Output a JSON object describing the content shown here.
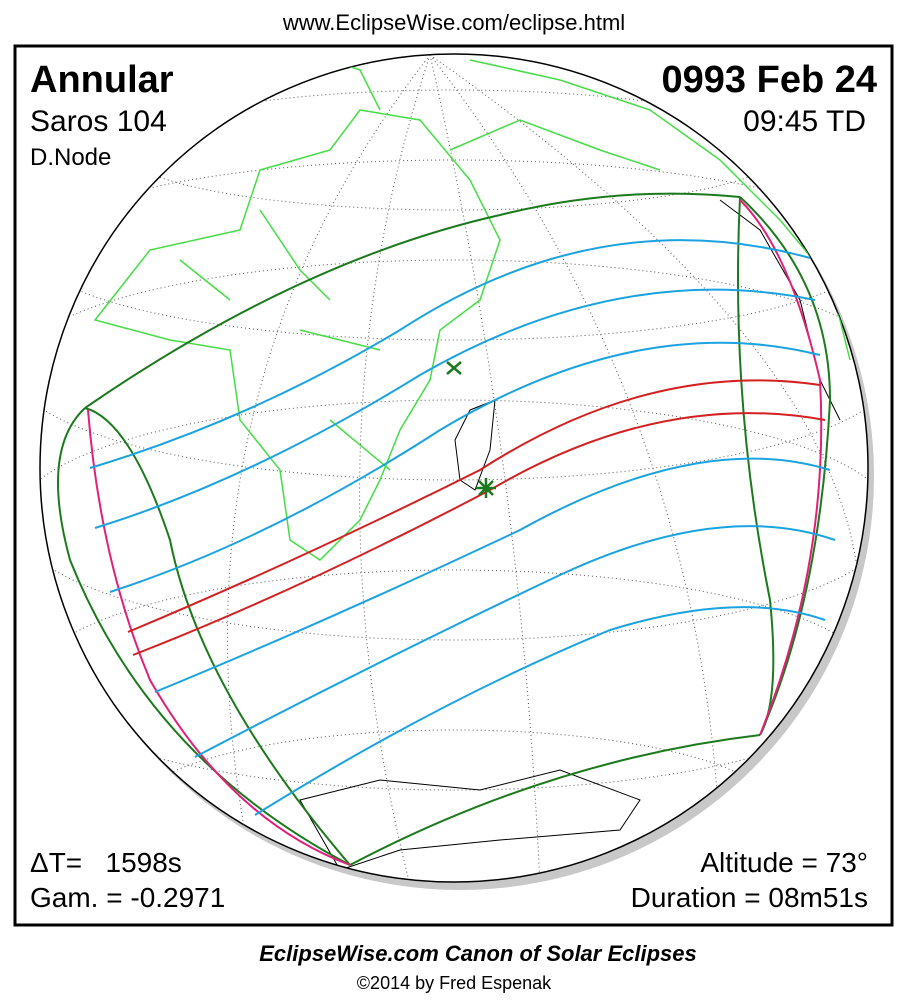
{
  "url": "www.EclipseWise.com/eclipse.html",
  "eclipse": {
    "type": "Annular",
    "date": "0993 Feb 24",
    "saros": "Saros 104",
    "time": "09:45 TD",
    "node": "D.Node",
    "delta_t": "ΔT=   1598s",
    "gamma": "Gam. = -0.2971",
    "altitude": "Altitude = 73°",
    "duration": "Duration = 08m51s"
  },
  "footer": {
    "title": "EclipseWise.com Canon of Solar Eclipses",
    "copyright": "©2014 by Fred Espenak"
  }
}
